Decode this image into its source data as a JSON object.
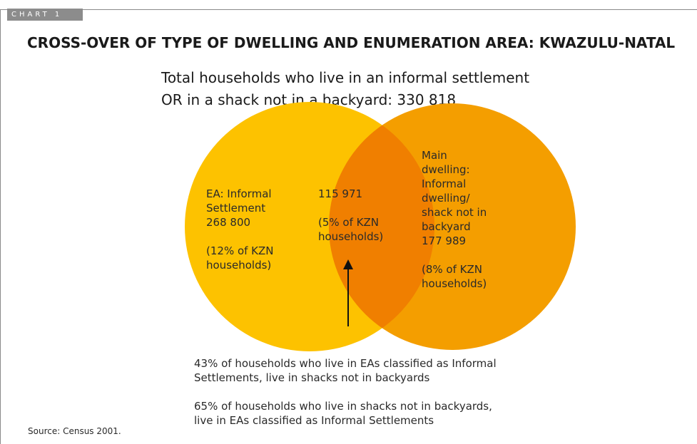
{
  "tab_label": "CHART 1",
  "title": "CROSS-OVER OF TYPE OF DWELLING AND ENUMERATION AREA: KWAZULU-NATAL",
  "subtitle": {
    "line1": "Total households who live in an informal settlement",
    "line2": "OR in a shack not in a backyard: 330 818"
  },
  "venn": {
    "left": {
      "name_line1": "EA: Informal",
      "name_line2": "Settlement",
      "value": "268 800",
      "pct_line1": "(12% of KZN",
      "pct_line2": "households)",
      "color": "#FDC200"
    },
    "right": {
      "name_line1": "Main",
      "name_line2": "dwelling:",
      "name_line3": "Informal",
      "name_line4": "dwelling/",
      "name_line5": "shack not in",
      "name_line6": "backyard",
      "value": "177 989",
      "pct_line1": "(8% of KZN",
      "pct_line2": "households)",
      "color": "#F49E00"
    },
    "overlap": {
      "value": "115 971",
      "pct_line1": "(5% of KZN",
      "pct_line2": "households)",
      "color": "#F07F00"
    }
  },
  "notes": {
    "note1_line1": "43% of households who live in EAs classified as Informal",
    "note1_line2": "Settlements, live in shacks not in backyards",
    "note2_line1": "65% of households who live in shacks not in backyards,",
    "note2_line2": "live in EAs classified as Informal Settlements"
  },
  "source": "Source: Census 2001."
}
